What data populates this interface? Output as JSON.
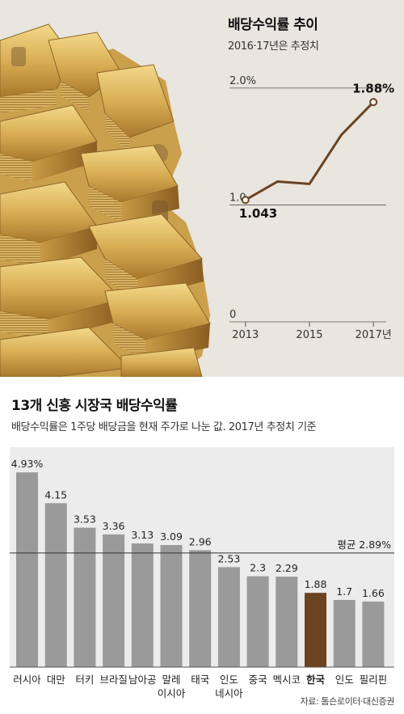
{
  "top_chart": {
    "title": "배당수익률 추이",
    "subtitle": "2016·17년은 추정치"
  },
  "bottom_chart": {
    "title": "13개 신흥 시장국 배당수익률",
    "subtitle": "배당수익률은 1주당 배당금을 현재 주가로 나눈 값. 2017년 추정치 기준",
    "source": "자료: 톰슨로이터·대신증권"
  },
  "colors": {
    "bar": "#9a9a9a",
    "highlight_bar": "#6b4320",
    "line": "#6b4320",
    "top_background": "#e9e5df"
  },
  "icons": [
    "money-stack-image"
  ],
  "chart_data": [
    {
      "type": "line",
      "title": "배당수익률 추이",
      "subtitle": "2016·17년은 추정치",
      "x": [
        2013,
        2014,
        2015,
        2016,
        2017
      ],
      "xticks": [
        "2013",
        "2015",
        "2017년"
      ],
      "xtick_values": [
        2013,
        2015,
        2017
      ],
      "yticks": [
        "0",
        "1.0",
        "2.0%"
      ],
      "ytick_values": [
        0,
        1.0,
        2.0
      ],
      "series": [
        {
          "values": [
            1.043,
            1.2,
            1.18,
            1.6,
            1.88
          ]
        }
      ],
      "labels": [
        {
          "x": 2013,
          "y": 1.043,
          "text": "1.043"
        },
        {
          "x": 2017,
          "y": 1.88,
          "text": "1.88%"
        }
      ],
      "xlim": [
        2012.5,
        2017.4
      ],
      "ylim": [
        0,
        2.2
      ],
      "grid": true
    },
    {
      "type": "bar",
      "title": "13개 신흥 시장국 배당수익률",
      "categories": [
        [
          "러시아"
        ],
        [
          "대만"
        ],
        [
          "터키"
        ],
        [
          "브라질"
        ],
        [
          "남아공"
        ],
        [
          "말레",
          "이시아"
        ],
        [
          "태국"
        ],
        [
          "인도",
          "네시아"
        ],
        [
          "중국"
        ],
        [
          "멕시코"
        ],
        [
          "한국"
        ],
        [
          "인도"
        ],
        [
          "필리핀"
        ]
      ],
      "values": [
        4.93,
        4.15,
        3.53,
        3.36,
        3.13,
        3.09,
        2.96,
        2.53,
        2.3,
        2.29,
        1.88,
        1.7,
        1.66
      ],
      "value_labels": [
        "4.93%",
        "4.15",
        "3.53",
        "3.36",
        "3.13",
        "3.09",
        "2.96",
        "2.53",
        "2.3",
        "2.29",
        "1.88",
        "1.7",
        "1.66"
      ],
      "highlight": "한국",
      "average": {
        "value": 2.89,
        "label": "평균 2.89%"
      },
      "ylim": [
        0,
        5.2
      ]
    }
  ]
}
